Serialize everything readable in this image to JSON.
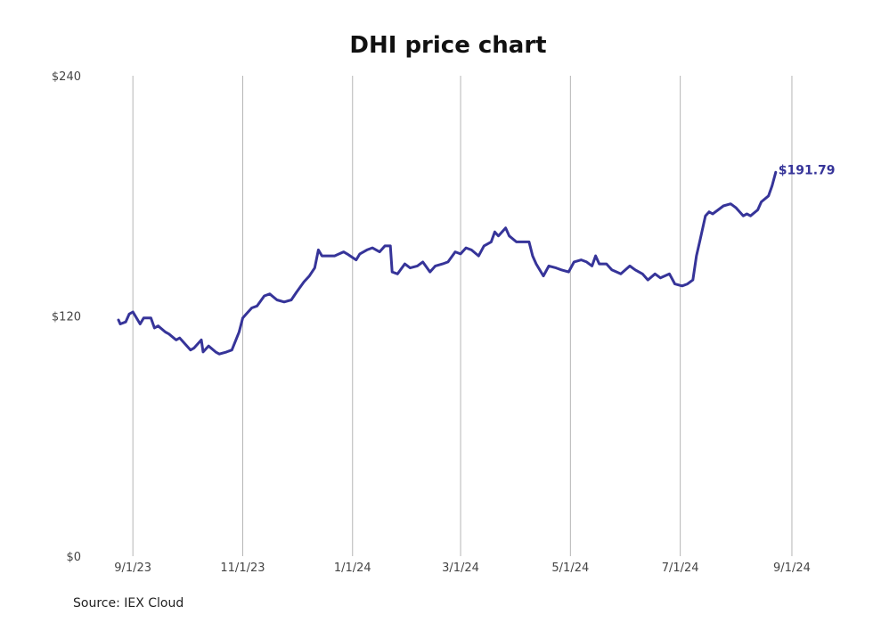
{
  "source_text": "Source: IEX Cloud",
  "chart_data": {
    "type": "line",
    "title": "DHI price chart",
    "xlabel": "",
    "ylabel": "",
    "ylim": [
      0,
      240
    ],
    "xlim": [
      "2023-08-24",
      "2024-09-03"
    ],
    "y_ticks": [
      {
        "value": 0,
        "label": "$0"
      },
      {
        "value": 120,
        "label": "$120"
      },
      {
        "value": 240,
        "label": "$240"
      }
    ],
    "x_ticks": [
      {
        "date": "2023-09-01",
        "label": "9/1/23"
      },
      {
        "date": "2023-11-01",
        "label": "11/1/23"
      },
      {
        "date": "2024-01-01",
        "label": "1/1/24"
      },
      {
        "date": "2024-03-01",
        "label": "3/1/24"
      },
      {
        "date": "2024-05-01",
        "label": "5/1/24"
      },
      {
        "date": "2024-07-01",
        "label": "7/1/24"
      },
      {
        "date": "2024-09-01",
        "label": "9/1/24"
      }
    ],
    "grid": {
      "vertical": true,
      "horizontal": false
    },
    "line_color": "#363499",
    "end_label": "$191.79",
    "series": [
      {
        "points": [
          [
            "2023-08-24",
            118
          ],
          [
            "2023-08-25",
            116
          ],
          [
            "2023-08-28",
            117
          ],
          [
            "2023-08-30",
            121
          ],
          [
            "2023-09-01",
            122
          ],
          [
            "2023-09-05",
            116
          ],
          [
            "2023-09-07",
            119
          ],
          [
            "2023-09-11",
            119
          ],
          [
            "2023-09-13",
            114
          ],
          [
            "2023-09-15",
            115
          ],
          [
            "2023-09-19",
            112
          ],
          [
            "2023-09-21",
            111
          ],
          [
            "2023-09-25",
            108
          ],
          [
            "2023-09-27",
            109
          ],
          [
            "2023-09-29",
            107
          ],
          [
            "2023-10-03",
            103
          ],
          [
            "2023-10-05",
            104
          ],
          [
            "2023-10-09",
            108
          ],
          [
            "2023-10-10",
            102
          ],
          [
            "2023-10-13",
            105
          ],
          [
            "2023-10-17",
            102
          ],
          [
            "2023-10-19",
            101
          ],
          [
            "2023-10-23",
            102
          ],
          [
            "2023-10-26",
            103
          ],
          [
            "2023-10-30",
            112
          ],
          [
            "2023-11-01",
            119
          ],
          [
            "2023-11-03",
            121
          ],
          [
            "2023-11-06",
            124
          ],
          [
            "2023-11-09",
            125
          ],
          [
            "2023-11-13",
            130
          ],
          [
            "2023-11-16",
            131
          ],
          [
            "2023-11-20",
            128
          ],
          [
            "2023-11-24",
            127
          ],
          [
            "2023-11-28",
            128
          ],
          [
            "2023-12-01",
            132
          ],
          [
            "2023-12-05",
            137
          ],
          [
            "2023-12-08",
            140
          ],
          [
            "2023-12-11",
            144
          ],
          [
            "2023-12-13",
            153
          ],
          [
            "2023-12-15",
            150
          ],
          [
            "2023-12-19",
            150
          ],
          [
            "2023-12-22",
            150
          ],
          [
            "2023-12-27",
            152
          ],
          [
            "2023-12-29",
            151
          ],
          [
            "2024-01-03",
            148
          ],
          [
            "2024-01-05",
            151
          ],
          [
            "2024-01-09",
            153
          ],
          [
            "2024-01-12",
            154
          ],
          [
            "2024-01-16",
            152
          ],
          [
            "2024-01-19",
            155
          ],
          [
            "2024-01-22",
            155
          ],
          [
            "2024-01-23",
            142
          ],
          [
            "2024-01-26",
            141
          ],
          [
            "2024-01-30",
            146
          ],
          [
            "2024-02-02",
            144
          ],
          [
            "2024-02-06",
            145
          ],
          [
            "2024-02-09",
            147
          ],
          [
            "2024-02-13",
            142
          ],
          [
            "2024-02-16",
            145
          ],
          [
            "2024-02-20",
            146
          ],
          [
            "2024-02-23",
            147
          ],
          [
            "2024-02-27",
            152
          ],
          [
            "2024-03-01",
            151
          ],
          [
            "2024-03-04",
            154
          ],
          [
            "2024-03-07",
            153
          ],
          [
            "2024-03-11",
            150
          ],
          [
            "2024-03-14",
            155
          ],
          [
            "2024-03-18",
            157
          ],
          [
            "2024-03-20",
            162
          ],
          [
            "2024-03-22",
            160
          ],
          [
            "2024-03-26",
            164
          ],
          [
            "2024-03-28",
            160
          ],
          [
            "2024-04-01",
            157
          ],
          [
            "2024-04-04",
            157
          ],
          [
            "2024-04-08",
            157
          ],
          [
            "2024-04-10",
            150
          ],
          [
            "2024-04-12",
            146
          ],
          [
            "2024-04-16",
            140
          ],
          [
            "2024-04-19",
            145
          ],
          [
            "2024-04-23",
            144
          ],
          [
            "2024-04-26",
            143
          ],
          [
            "2024-04-30",
            142
          ],
          [
            "2024-05-03",
            147
          ],
          [
            "2024-05-07",
            148
          ],
          [
            "2024-05-10",
            147
          ],
          [
            "2024-05-13",
            145
          ],
          [
            "2024-05-15",
            150
          ],
          [
            "2024-05-17",
            146
          ],
          [
            "2024-05-21",
            146
          ],
          [
            "2024-05-24",
            143
          ],
          [
            "2024-05-29",
            141
          ],
          [
            "2024-06-03",
            145
          ],
          [
            "2024-06-06",
            143
          ],
          [
            "2024-06-10",
            141
          ],
          [
            "2024-06-13",
            138
          ],
          [
            "2024-06-17",
            141
          ],
          [
            "2024-06-20",
            139
          ],
          [
            "2024-06-25",
            141
          ],
          [
            "2024-06-28",
            136
          ],
          [
            "2024-07-02",
            135
          ],
          [
            "2024-07-05",
            136
          ],
          [
            "2024-07-08",
            138
          ],
          [
            "2024-07-10",
            150
          ],
          [
            "2024-07-12",
            158
          ],
          [
            "2024-07-15",
            170
          ],
          [
            "2024-07-17",
            172
          ],
          [
            "2024-07-19",
            171
          ],
          [
            "2024-07-22",
            173
          ],
          [
            "2024-07-25",
            175
          ],
          [
            "2024-07-29",
            176
          ],
          [
            "2024-08-01",
            174
          ],
          [
            "2024-08-05",
            170
          ],
          [
            "2024-08-07",
            171
          ],
          [
            "2024-08-09",
            170
          ],
          [
            "2024-08-13",
            173
          ],
          [
            "2024-08-15",
            177
          ],
          [
            "2024-08-19",
            180
          ],
          [
            "2024-08-21",
            185
          ],
          [
            "2024-08-23",
            191.79
          ]
        ]
      }
    ]
  }
}
